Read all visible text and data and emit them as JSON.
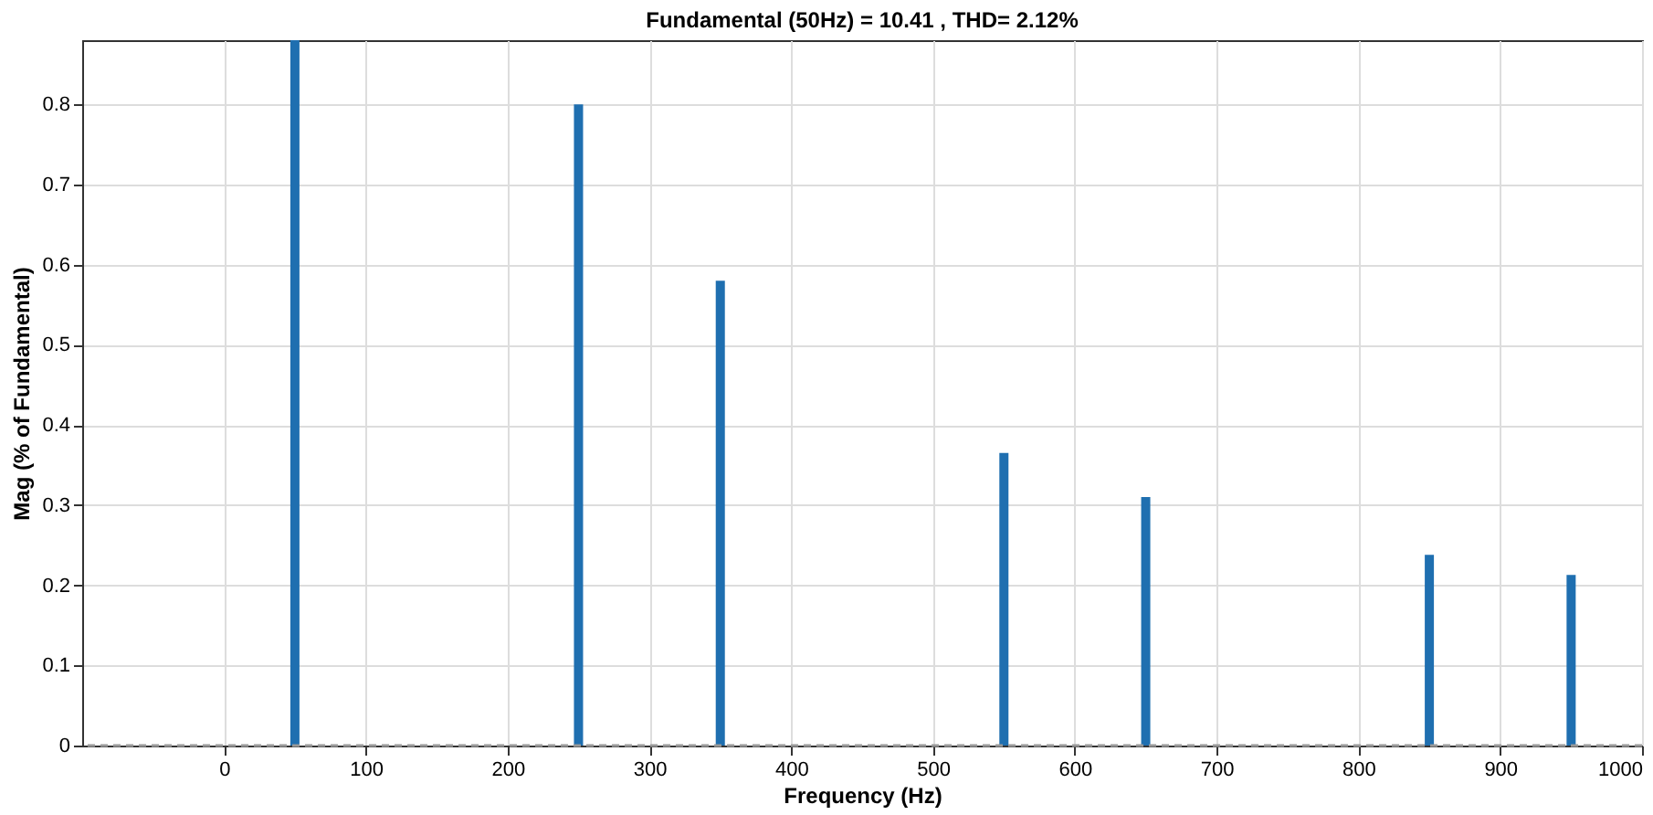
{
  "chart_data": {
    "type": "bar",
    "title": "Fundamental (50Hz) = 10.41 , THD= 2.12%",
    "xlabel": "Frequency (Hz)",
    "ylabel": "Mag (% of Fundamental)",
    "x": [
      50,
      250,
      350,
      550,
      650,
      850,
      950
    ],
    "values": [
      0.88,
      0.8,
      0.58,
      0.365,
      0.31,
      0.238,
      0.213
    ],
    "color": "#1f6fb0",
    "xlim": [
      -100,
      1000
    ],
    "xticks": [
      0,
      100,
      200,
      300,
      400,
      500,
      600,
      700,
      800,
      900,
      1000
    ],
    "ylim": [
      0,
      0.88
    ],
    "yticks": [
      0,
      0.1,
      0.2,
      0.3,
      0.4,
      0.5,
      0.6,
      0.7,
      0.8
    ],
    "grid": true,
    "ref_lines": [
      {
        "axis": "y",
        "value": 0,
        "label": null,
        "color": "#999999",
        "line_style": "dashed"
      }
    ]
  }
}
